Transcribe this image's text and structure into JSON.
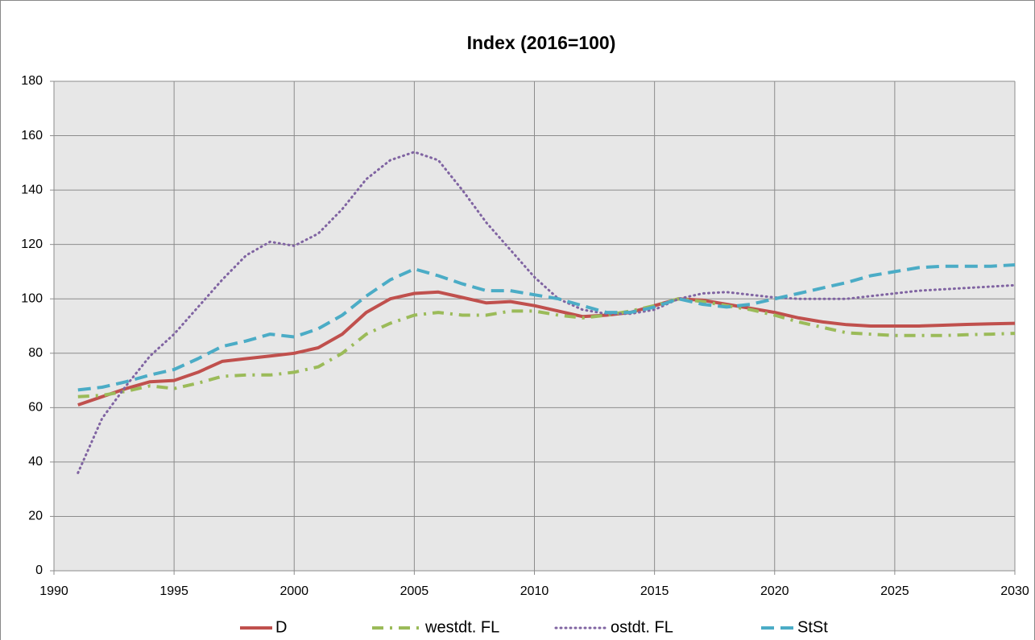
{
  "chart_data": {
    "type": "line",
    "title": "Index (2016=100)",
    "x": [
      1991,
      1992,
      1993,
      1994,
      1995,
      1996,
      1997,
      1998,
      1999,
      2000,
      2001,
      2002,
      2003,
      2004,
      2005,
      2006,
      2007,
      2008,
      2009,
      2010,
      2011,
      2012,
      2013,
      2014,
      2015,
      2016,
      2017,
      2018,
      2019,
      2020,
      2021,
      2022,
      2023,
      2024,
      2025,
      2026,
      2027,
      2028,
      2029,
      2030
    ],
    "series": [
      {
        "name": "D",
        "color": "#c0504d",
        "dash": "solid",
        "values": [
          61,
          64,
          67,
          69.5,
          70,
          73,
          77,
          78,
          79,
          80,
          82,
          87,
          95,
          100,
          102,
          102.5,
          100.5,
          98.5,
          99,
          97.5,
          95.5,
          93.5,
          94,
          95,
          97.5,
          100,
          99.5,
          98,
          96.5,
          95,
          93,
          91.5,
          90.5,
          90,
          90,
          90,
          90.3,
          90.6,
          90.8,
          91
        ]
      },
      {
        "name": "westdt. FL",
        "color": "#9bbb59",
        "dash": "dashdot",
        "values": [
          64,
          64.5,
          66,
          68,
          67,
          69,
          71.5,
          72,
          72,
          73,
          75,
          80,
          87,
          91,
          94,
          95,
          94,
          94,
          95.5,
          95.5,
          94,
          93,
          94,
          95.5,
          97.5,
          100,
          99,
          97.5,
          96,
          94,
          91.5,
          89.5,
          87.5,
          87,
          86.5,
          86.5,
          86.5,
          86.8,
          87,
          87.3
        ]
      },
      {
        "name": "ostdt. FL",
        "color": "#8064a2",
        "dash": "dotted",
        "values": [
          36,
          56,
          68,
          79,
          87,
          97,
          107,
          116,
          121,
          119.5,
          124,
          133,
          144,
          151,
          154,
          151,
          140,
          128,
          118,
          108,
          100,
          96,
          94.5,
          94.5,
          96,
          100,
          102,
          102.5,
          101.5,
          100.5,
          100,
          100,
          100,
          101,
          102,
          103,
          103.5,
          104,
          104.5,
          105
        ]
      },
      {
        "name": "StSt",
        "color": "#4bacc6",
        "dash": "dashed",
        "values": [
          66.5,
          67.5,
          69.5,
          72,
          74,
          78,
          82.5,
          84.5,
          87,
          86,
          89,
          94,
          101,
          107,
          111,
          108.5,
          105.5,
          103,
          103,
          101.5,
          100,
          97.5,
          95,
          95,
          97,
          100,
          98,
          97,
          98,
          100,
          102,
          104,
          106,
          108.5,
          110,
          111.5,
          112,
          112,
          112,
          112.5
        ]
      }
    ],
    "xlim": [
      1990,
      2030
    ],
    "xticks": [
      1990,
      1995,
      2000,
      2005,
      2010,
      2015,
      2020,
      2025,
      2030
    ],
    "ylim": [
      0,
      180
    ],
    "yticks": [
      0,
      20,
      40,
      60,
      80,
      100,
      120,
      140,
      160,
      180
    ],
    "grid": true,
    "legend": "bottom"
  }
}
